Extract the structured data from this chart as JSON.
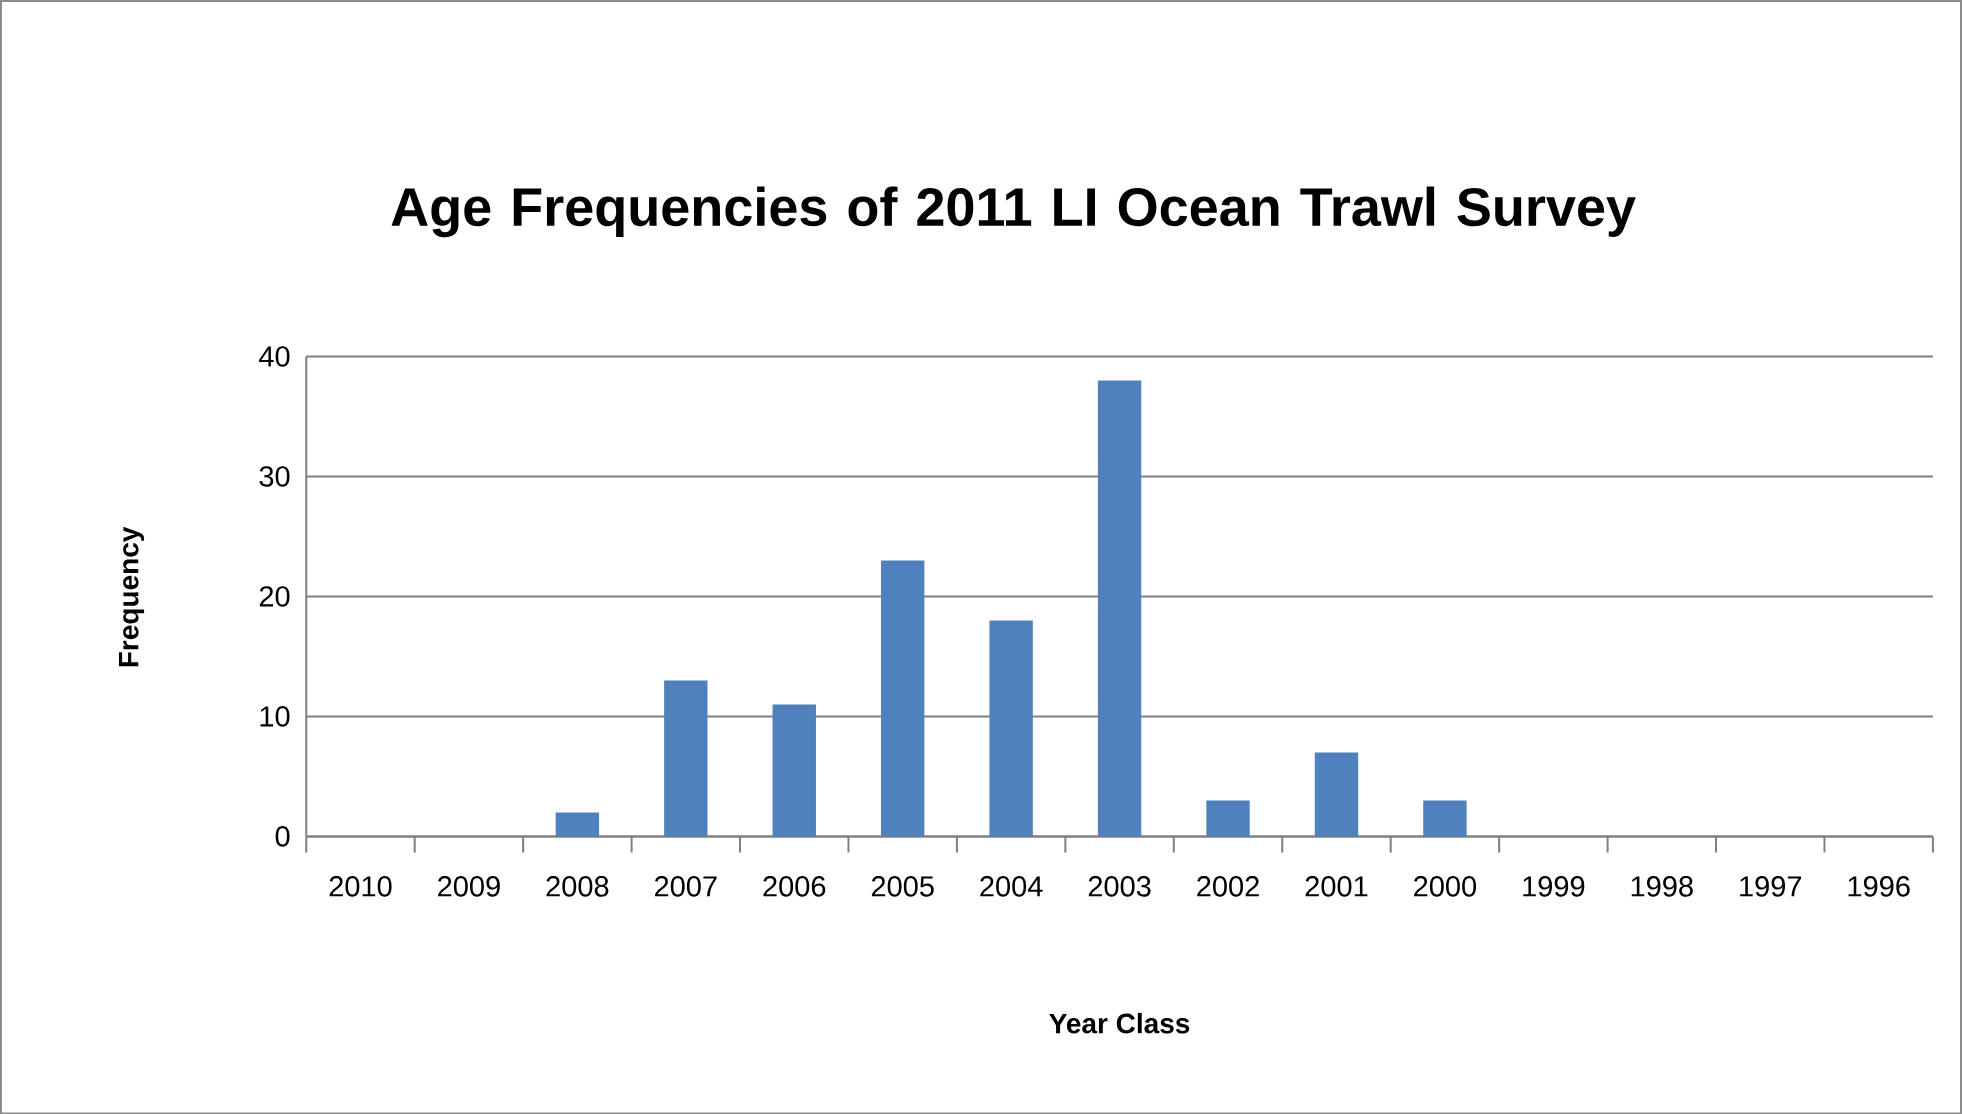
{
  "chart_data": {
    "type": "bar",
    "title": "Age Frequencies of 2011 LI Ocean Trawl Survey",
    "xlabel": "Year Class",
    "ylabel": "Frequency",
    "categories": [
      "2010",
      "2009",
      "2008",
      "2007",
      "2006",
      "2005",
      "2004",
      "2003",
      "2002",
      "2001",
      "2000",
      "1999",
      "1998",
      "1997",
      "1996"
    ],
    "values": [
      0,
      0,
      2,
      13,
      11,
      23,
      18,
      38,
      3,
      7,
      3,
      0,
      0,
      0,
      0
    ],
    "color": "#4f81bd",
    "ylim": [
      0,
      40
    ],
    "yticks": [
      0,
      10,
      20,
      30,
      40
    ],
    "grid": "y"
  }
}
